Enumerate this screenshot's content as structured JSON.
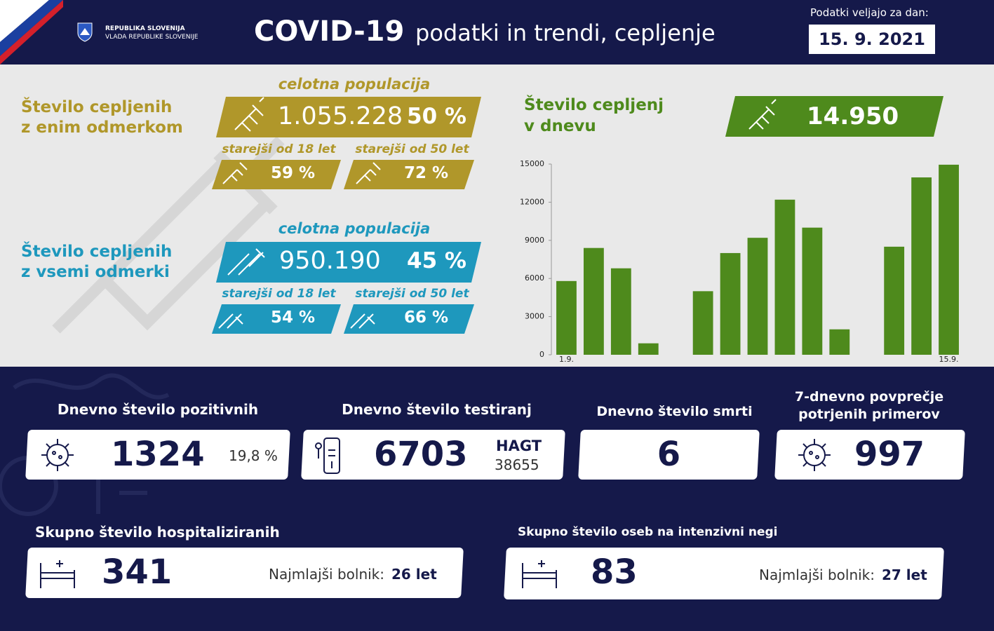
{
  "header": {
    "org_line1": "REPUBLIKA SLOVENIJA",
    "org_line2": "VLADA REPUBLIKE SLOVENIJE",
    "title_bold": "COVID-19",
    "title_rest": "podatki in trendi, cepljenje",
    "date_label": "Podatki veljajo za dan:",
    "date": "15. 9. 2021"
  },
  "vaccination": {
    "first_dose": {
      "label_line1": "Število cepljenih",
      "label_line2": "z enim odmerkom",
      "population_label": "celotna populacija",
      "count": "1.055.228",
      "percent": "50 %",
      "over18_label": "starejši od 18 let",
      "over18": "59 %",
      "over50_label": "starejši od 50 let",
      "over50": "72 %"
    },
    "all_doses": {
      "label_line1": "Število cepljenih",
      "label_line2": "z vsemi odmerki",
      "population_label": "celotna populacija",
      "count": "950.190",
      "percent": "45 %",
      "over18_label": "starejši od 18 let",
      "over18": "54 %",
      "over50_label": "starejši od 50 let",
      "over50": "66 %"
    }
  },
  "chart_data": {
    "type": "bar",
    "title_line1": "Število cepljenj",
    "title_line2": "v dnevu",
    "total": "14.950",
    "categories": [
      "1.9.",
      null,
      null,
      null,
      null,
      null,
      null,
      null,
      null,
      null,
      null,
      null,
      null,
      null,
      "15.9."
    ],
    "values": [
      5800,
      8400,
      6800,
      900,
      null,
      5000,
      8000,
      9200,
      12200,
      10000,
      2000,
      null,
      8500,
      13950,
      14950
    ],
    "color": "#4e8a1c",
    "ylim": [
      0,
      15000
    ],
    "yticks": [
      0,
      3000,
      6000,
      9000,
      12000,
      15000
    ]
  },
  "stats": {
    "positive": {
      "label": "Dnevno število pozitivnih",
      "value": "1324",
      "share": "19,8 %"
    },
    "tests": {
      "label": "Dnevno število testiranj",
      "value": "6703",
      "hagt_label": "HAGT",
      "hagt": "38655"
    },
    "deaths": {
      "label": "Dnevno število smrti",
      "value": "6"
    },
    "avg7": {
      "label_line1": "7-dnevno povprečje",
      "label_line2": "potrjenih primerov",
      "value": "997"
    },
    "hospitalized": {
      "label": "Skupno število hospitaliziranih",
      "value": "341",
      "youngest_label": "Najmlajši bolnik:",
      "youngest": "26 let"
    },
    "icu": {
      "label": "Skupno število oseb na intenzivni negi",
      "value": "83",
      "youngest_label": "Najmlajši bolnik:",
      "youngest": "27 let"
    }
  }
}
